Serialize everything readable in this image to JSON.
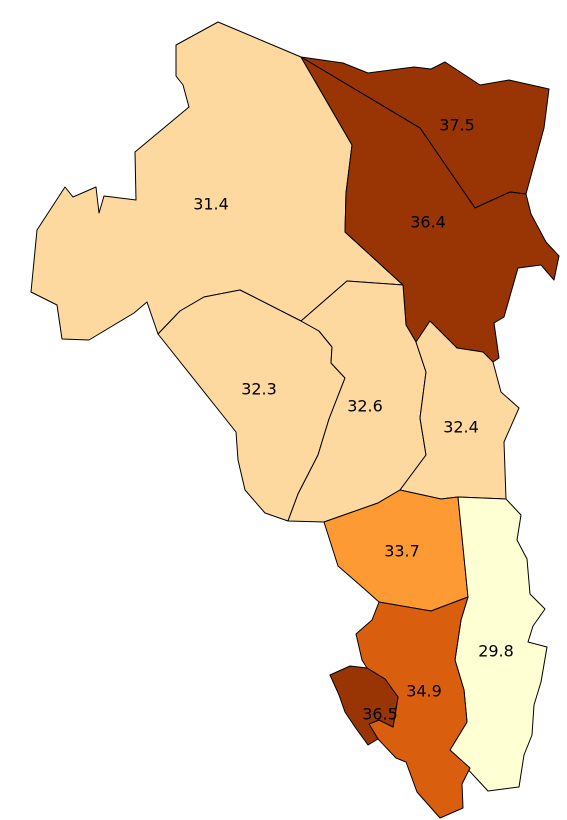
{
  "chart_data": {
    "type": "choropleth",
    "regions": [
      {
        "id": "r1",
        "value": "31.4",
        "color": "#FDD9A0"
      },
      {
        "id": "r2",
        "value": "37.5",
        "color": "#993404"
      },
      {
        "id": "r3",
        "value": "36.4",
        "color": "#993404"
      },
      {
        "id": "r4",
        "value": "32.3",
        "color": "#FDD9A0"
      },
      {
        "id": "r5",
        "value": "32.6",
        "color": "#FDD9A0"
      },
      {
        "id": "r6",
        "value": "32.4",
        "color": "#FDD9A0"
      },
      {
        "id": "r7",
        "value": "33.7",
        "color": "#FE9A33"
      },
      {
        "id": "r8",
        "value": "29.8",
        "color": "#FFFFD4"
      },
      {
        "id": "r9",
        "value": "34.9",
        "color": "#D95F0E"
      },
      {
        "id": "r10",
        "value": "36.5",
        "color": "#993404"
      }
    ]
  }
}
